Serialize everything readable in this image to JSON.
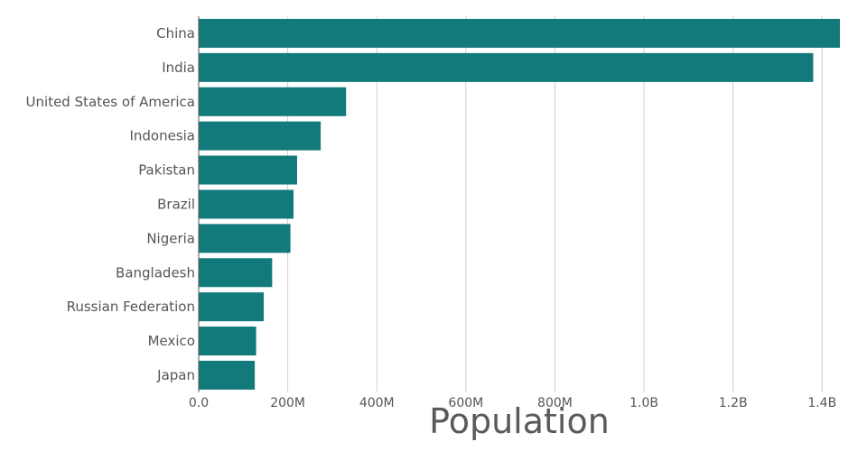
{
  "chart_data": {
    "type": "bar",
    "orientation": "horizontal",
    "categories": [
      "China",
      "India",
      "United States of America",
      "Indonesia",
      "Pakistan",
      "Brazil",
      "Nigeria",
      "Bangladesh",
      "Russian Federation",
      "Mexico",
      "Japan"
    ],
    "values": [
      1440000000,
      1380000000,
      331000000,
      274000000,
      221000000,
      213000000,
      206000000,
      165000000,
      146000000,
      129000000,
      126000000
    ],
    "xlabel": "Population",
    "ylabel": "",
    "title": "",
    "xlim": [
      0,
      1440000000
    ],
    "xticks": [
      0,
      200000000,
      400000000,
      600000000,
      800000000,
      1000000000,
      1200000000,
      1400000000
    ],
    "xtick_labels": [
      "0.0",
      "200M",
      "400M",
      "600M",
      "800M",
      "1.0B",
      "1.2B",
      "1.4B"
    ],
    "grid": "vertical",
    "bar_color": "#137a7c"
  }
}
